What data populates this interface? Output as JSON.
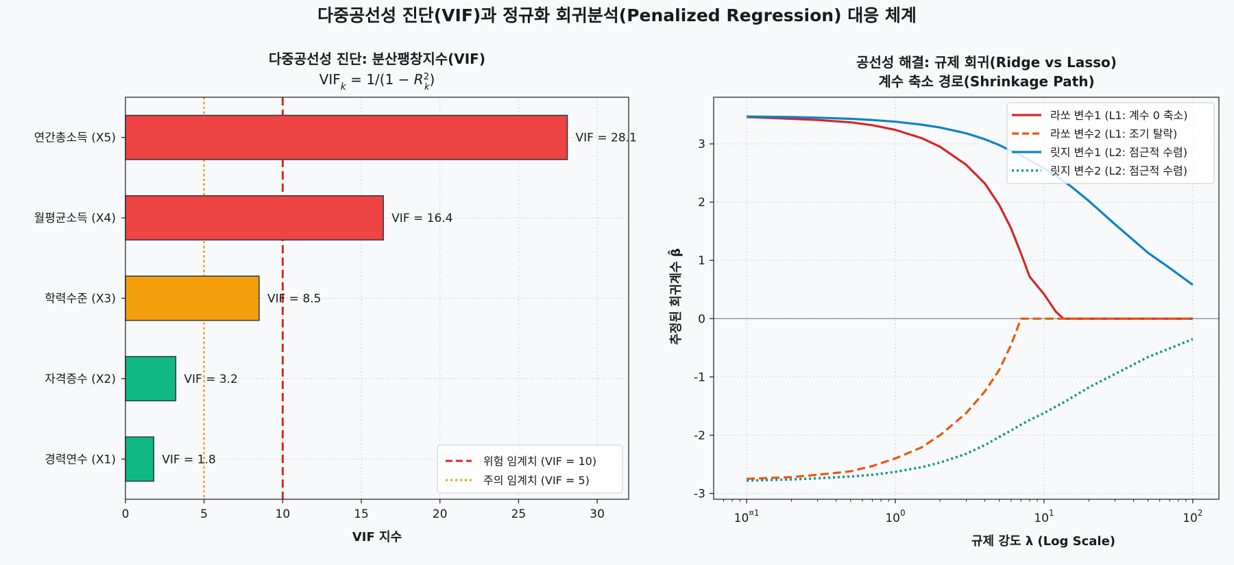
{
  "suptitle": "다중공선성 진단(VIF)과 정규화 회귀분석(Penalized Regression) 대응 체계",
  "colors": {
    "danger": "#ef4444",
    "warning": "#f59e0b",
    "safe": "#10b981",
    "threshold_danger": "#dc2626",
    "threshold_warn": "#f59e0b",
    "lasso1": "#d62728",
    "lasso2": "#e8590c",
    "ridge1": "#0b84c6",
    "ridge2": "#0d9488",
    "bar_edge": "#2d3748"
  },
  "chart_data": [
    {
      "type": "bar",
      "orientation": "horizontal",
      "title_line1": "다중공선성 진단: 분산팽창지수(VIF)",
      "title_formula": {
        "base": "VIF",
        "sub": "k",
        "rhs": " = 1/(1 − ",
        "R": "R",
        "r_sup": "2",
        "r_sub": "k",
        "close": ")"
      },
      "xlabel": "VIF 지수",
      "ylabel": "",
      "xlim": [
        0,
        32
      ],
      "xticks": [
        0,
        5,
        10,
        15,
        20,
        25,
        30
      ],
      "grid": true,
      "categories": [
        "경력연수 (X1)",
        "자격증수 (X2)",
        "학력수준 (X3)",
        "월평균소득 (X4)",
        "연간총소득 (X5)"
      ],
      "values": [
        1.8,
        3.2,
        8.5,
        16.4,
        28.1
      ],
      "value_labels": [
        "VIF = 1.8",
        "VIF = 3.2",
        "VIF = 8.5",
        "VIF = 16.4",
        "VIF = 28.1"
      ],
      "bar_colors": [
        "safe",
        "safe",
        "warning",
        "danger",
        "danger"
      ],
      "thresholds": [
        {
          "value": 10,
          "label": "위험 임계치 (VIF = 10)",
          "style": "dashed",
          "color": "threshold_danger"
        },
        {
          "value": 5,
          "label": "주의 임계치 (VIF = 5)",
          "style": "dotted",
          "color": "threshold_warn"
        }
      ],
      "legend_position": "lower-right"
    },
    {
      "type": "line",
      "title_line1": "공선성 해결: 규제 회귀(Ridge vs Lasso)",
      "title_line2": "계수 축소 경로(Shrinkage Path)",
      "xlabel": "규제 강도 λ (Log Scale)",
      "ylabel": "추정된 회귀계수 β̂",
      "x_scale": "log",
      "xlim": [
        0.06,
        150
      ],
      "ylim": [
        -3.1,
        3.8
      ],
      "xticks": [
        0.1,
        1,
        10,
        100
      ],
      "xtick_labels": [
        {
          "base": "10",
          "exp": "¤1"
        },
        {
          "base": "10",
          "exp": "0"
        },
        {
          "base": "10",
          "exp": "1"
        },
        {
          "base": "10",
          "exp": "2"
        }
      ],
      "yticks": [
        3,
        2,
        1,
        0,
        -1,
        -2,
        -3
      ],
      "ytick_labels": [
        "3",
        "2",
        "1",
        "0",
        "-1",
        "-2",
        "-3"
      ],
      "grid": true,
      "zero_line": true,
      "legend_position": "upper-right",
      "x": [
        0.1,
        0.2,
        0.3,
        0.5,
        0.7,
        1,
        1.5,
        2,
        3,
        4,
        5,
        6,
        7,
        8,
        10,
        12,
        13.5,
        15,
        20,
        30,
        50,
        70,
        100
      ],
      "series": [
        {
          "name": "라쏘 변수1 (L1: 계수 0 축소)",
          "color": "lasso1",
          "style": "solid",
          "y": [
            3.46,
            3.43,
            3.41,
            3.37,
            3.32,
            3.24,
            3.1,
            2.95,
            2.64,
            2.32,
            1.95,
            1.55,
            1.12,
            0.72,
            0.42,
            0.12,
            0.0,
            0.0,
            0.0,
            0.0,
            0.0,
            0.0,
            0.0
          ]
        },
        {
          "name": "라쏘 변수2 (L1: 조기 탈락)",
          "color": "lasso2",
          "style": "dashed",
          "y": [
            -2.75,
            -2.72,
            -2.68,
            -2.62,
            -2.53,
            -2.4,
            -2.21,
            -2.0,
            -1.62,
            -1.25,
            -0.88,
            -0.45,
            0.0,
            0.0,
            0.0,
            0.0,
            0.0,
            0.0,
            0.0,
            0.0,
            0.0,
            0.0,
            0.0
          ]
        },
        {
          "name": "릿지 변수1 (L2: 점근적 수렴)",
          "color": "ridge1",
          "style": "solid",
          "y": [
            3.47,
            3.46,
            3.45,
            3.43,
            3.41,
            3.38,
            3.33,
            3.28,
            3.18,
            3.08,
            2.98,
            2.88,
            2.8,
            2.72,
            2.58,
            2.45,
            2.36,
            2.28,
            2.02,
            1.62,
            1.13,
            0.87,
            0.58
          ]
        },
        {
          "name": "릿지 변수2 (L2: 점근적 수렴)",
          "color": "ridge2",
          "style": "dotted",
          "y": [
            -2.78,
            -2.76,
            -2.74,
            -2.71,
            -2.68,
            -2.63,
            -2.55,
            -2.47,
            -2.32,
            -2.17,
            -2.03,
            -1.92,
            -1.82,
            -1.74,
            -1.62,
            -1.51,
            -1.44,
            -1.37,
            -1.18,
            -0.95,
            -0.66,
            -0.51,
            -0.35
          ]
        }
      ]
    }
  ]
}
